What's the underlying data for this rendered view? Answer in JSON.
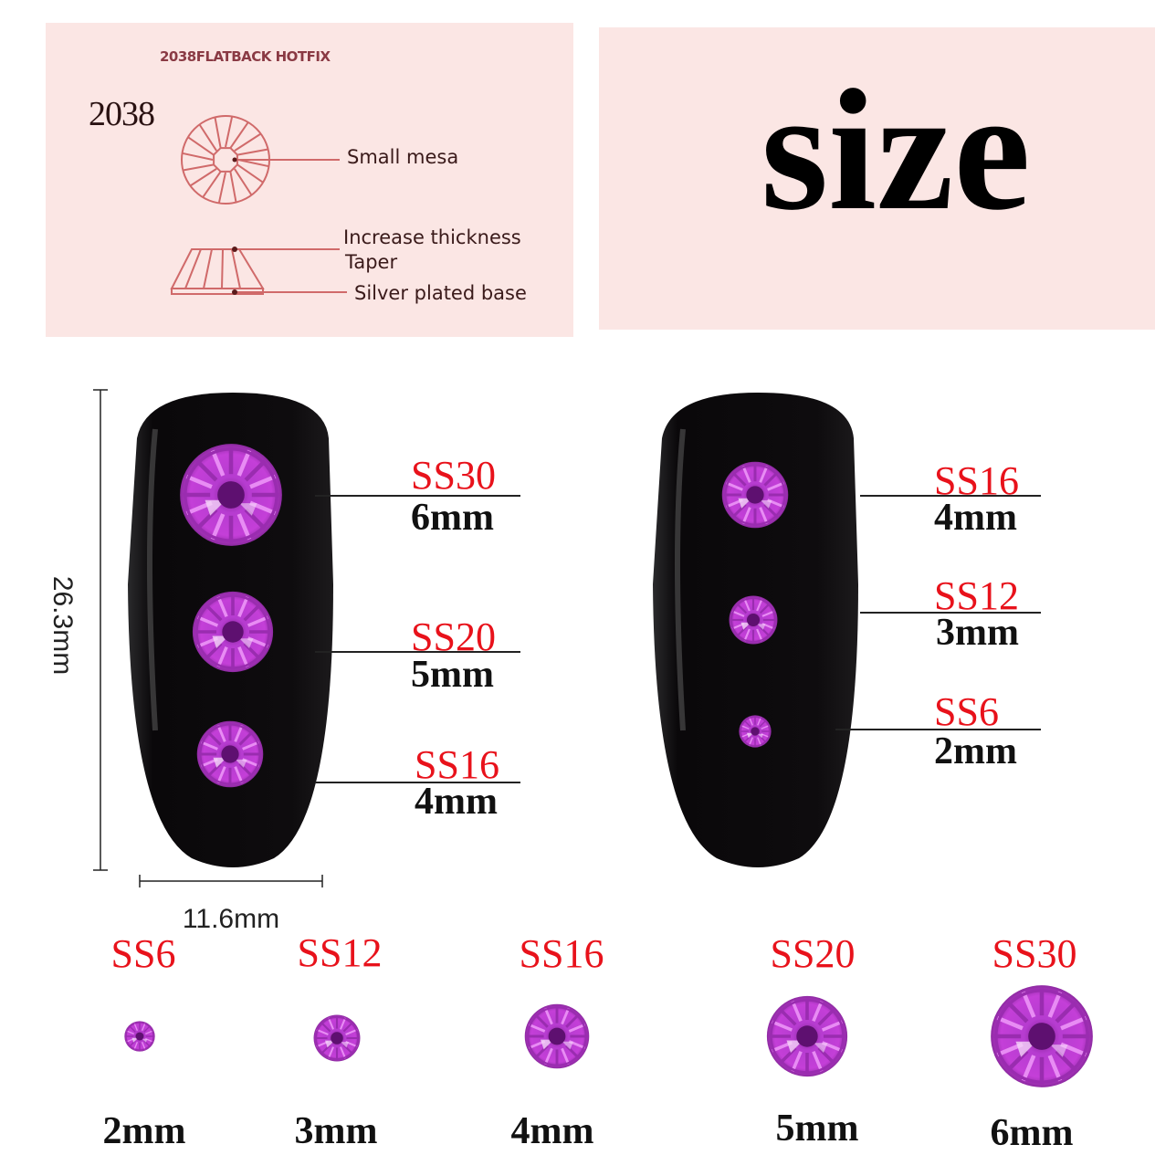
{
  "diagram": {
    "header": "2038FLATBACK HOTFIX",
    "model": "2038",
    "labels": {
      "small_mesa": "Small mesa",
      "increase_thickness": "Increase thickness",
      "taper": "Taper",
      "silver_base": "Silver plated base"
    }
  },
  "size_title": "size",
  "dimensions": {
    "height": "26.3mm",
    "width": "11.6mm"
  },
  "nail_left": [
    {
      "code": "SS30",
      "mm": "6mm"
    },
    {
      "code": "SS20",
      "mm": "5mm"
    },
    {
      "code": "SS16",
      "mm": "4mm"
    }
  ],
  "nail_right": [
    {
      "code": "SS16",
      "mm": "4mm"
    },
    {
      "code": "SS12",
      "mm": "3mm"
    },
    {
      "code": "SS6",
      "mm": "2mm"
    }
  ],
  "row": [
    {
      "code": "SS6",
      "mm": "2mm"
    },
    {
      "code": "SS12",
      "mm": "3mm"
    },
    {
      "code": "SS16",
      "mm": "4mm"
    },
    {
      "code": "SS20",
      "mm": "5mm"
    },
    {
      "code": "SS30",
      "mm": "6mm"
    }
  ],
  "colors": {
    "gem": "#c43fd8",
    "label_red": "#e8121b",
    "panel": "#fbe6e4",
    "diagram_line": "#d06a6a",
    "nail": "#0c0a0c"
  }
}
